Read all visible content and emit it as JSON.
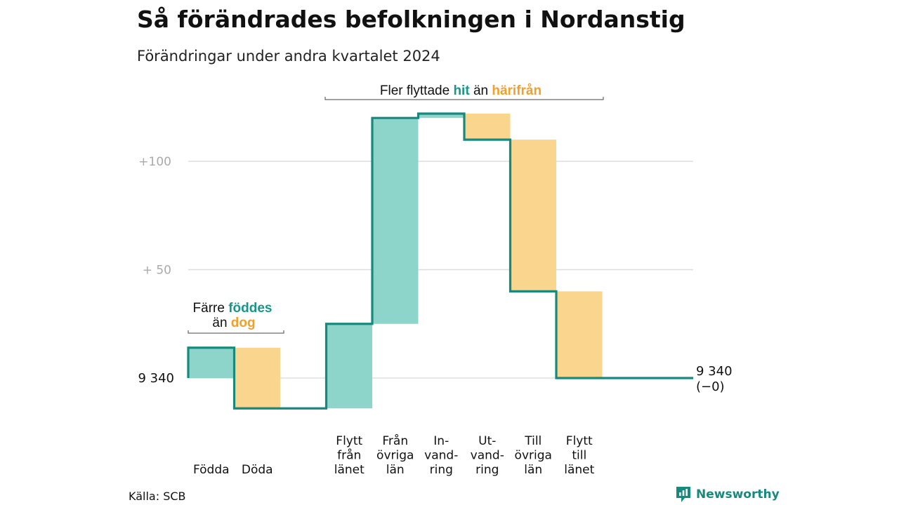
{
  "title": "Så förändrades befolkningen i Nordanstig",
  "subtitle": "Förändringar under andra kvartalet 2024",
  "source": "Källa: SCB",
  "brand": "Newsworthy",
  "colors": {
    "increase": "#8dd4cb",
    "decrease": "#fad58d",
    "line": "#17897d",
    "accent_teal": "#17968a",
    "accent_orange": "#f0a02b",
    "grid": "#dddddd"
  },
  "annotations": {
    "top": {
      "prefix": "Fler flyttade",
      "teal": "hit",
      "mid": "än",
      "orange": "härifrån"
    },
    "left": {
      "line1_prefix": "Färre",
      "line1_teal": "föddes",
      "line2_prefix": "än",
      "line2_orange": "dog"
    }
  },
  "chart_data": {
    "type": "waterfall",
    "baseline": 9340,
    "baseline_label": "9 340",
    "end_label": "9 340",
    "end_change_label": "(−0)",
    "y_ticks": [
      {
        "value": 9440,
        "label": "+100"
      },
      {
        "value": 9390,
        "label": "+  50"
      }
    ],
    "ylim": [
      9322,
      9472
    ],
    "grid": true,
    "steps": [
      {
        "label": [
          "Födda"
        ],
        "change": 14
      },
      {
        "label": [
          "Döda"
        ],
        "change": -28
      },
      {
        "label": [
          "Flytt",
          "från",
          "länet"
        ],
        "change": 39
      },
      {
        "label": [
          "Från",
          "övriga",
          "län"
        ],
        "change": 95
      },
      {
        "label": [
          "In-",
          "vand-",
          "ring"
        ],
        "change": 2
      },
      {
        "label": [
          "Ut-",
          "vand-",
          "ring"
        ],
        "change": -12
      },
      {
        "label": [
          "Till",
          "övriga",
          "län"
        ],
        "change": -70
      },
      {
        "label": [
          "Flytt",
          "till",
          "länet"
        ],
        "change": -40
      }
    ]
  }
}
